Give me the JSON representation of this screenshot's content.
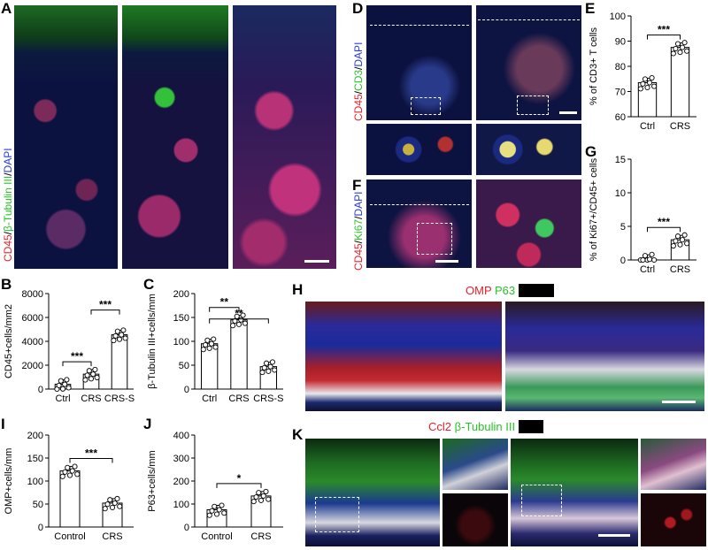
{
  "panels": {
    "A": {
      "letter": "A",
      "stain": {
        "c1": "CD45",
        "sep": "/",
        "c2": "β-Tubulin III",
        "sep2": "/",
        "c3": "DAPI"
      },
      "colors": {
        "c1": "#e8202a",
        "c2": "#28c428",
        "c3": "#2a3adf"
      }
    },
    "D": {
      "letter": "D",
      "stain": {
        "c1": "CD45",
        "sep": "/",
        "c2": "CD3",
        "sep2": "/",
        "c3": "DAPI"
      }
    },
    "F": {
      "letter": "F",
      "stain": {
        "c1": "CD45",
        "sep": "/",
        "c2": "Ki67",
        "sep2": "/",
        "c3": "DAPI"
      }
    },
    "H": {
      "letter": "H",
      "stain": {
        "c1": "OMP",
        "c2": "P63"
      }
    },
    "K": {
      "letter": "K",
      "stain": {
        "c1": "Ccl2",
        "c2": "β-Tubulin III"
      }
    }
  },
  "chart_data": [
    {
      "panel": "B",
      "type": "bar",
      "categories": [
        "Ctrl",
        "CRS",
        "CRS-S"
      ],
      "values": [
        400,
        1250,
        4550
      ],
      "ylabel": "CD45+cells/mm2",
      "ylim": [
        0,
        8000
      ],
      "yticks": [
        0,
        2000,
        4000,
        6000,
        8000
      ],
      "significance": [
        {
          "from": 0,
          "to": 1,
          "label": "***"
        },
        {
          "from": 1,
          "to": 2,
          "label": "***"
        }
      ]
    },
    {
      "panel": "C",
      "type": "bar",
      "categories": [
        "Ctrl",
        "CRS",
        "CRS-S"
      ],
      "values": [
        95,
        145,
        47
      ],
      "ylabel": "β-Tubulin III+cells/mm",
      "ylim": [
        0,
        200
      ],
      "yticks": [
        0,
        50,
        100,
        150,
        200
      ],
      "significance": [
        {
          "from": 0,
          "to": 1,
          "label": "**"
        },
        {
          "from": 0,
          "to": 2,
          "label": "**"
        }
      ]
    },
    {
      "panel": "E",
      "type": "bar",
      "categories": [
        "Ctrl",
        "CRS"
      ],
      "values": [
        73.5,
        87.5
      ],
      "ylabel": "% of CD3+ T cells",
      "ylim": [
        60,
        100
      ],
      "yticks": [
        60,
        70,
        80,
        90,
        100
      ],
      "significance": [
        {
          "from": 0,
          "to": 1,
          "label": "***"
        }
      ]
    },
    {
      "panel": "G",
      "type": "bar",
      "categories": [
        "Ctrl",
        "CRS"
      ],
      "values": [
        0.1,
        3.0
      ],
      "ylabel": "% of Ki67+/CD45+ cells",
      "ylim": [
        0,
        15
      ],
      "yticks": [
        0,
        5,
        10,
        15
      ],
      "significance": [
        {
          "from": 0,
          "to": 1,
          "label": "***"
        }
      ]
    },
    {
      "panel": "I",
      "type": "bar",
      "categories": [
        "Control",
        "CRS"
      ],
      "values": [
        122,
        52
      ],
      "ylabel": "OMP+cells/mm",
      "ylim": [
        0,
        200
      ],
      "yticks": [
        0,
        50,
        100,
        150,
        200
      ],
      "significance": [
        {
          "from": 0,
          "to": 1,
          "label": "***"
        }
      ]
    },
    {
      "panel": "J",
      "type": "bar",
      "categories": [
        "Control",
        "CRS"
      ],
      "values": [
        75,
        135
      ],
      "ylabel": "P63+cells/mm",
      "ylim": [
        0,
        400
      ],
      "yticks": [
        0,
        100,
        200,
        300,
        400
      ],
      "significance": [
        {
          "from": 0,
          "to": 1,
          "label": "*"
        }
      ]
    }
  ]
}
